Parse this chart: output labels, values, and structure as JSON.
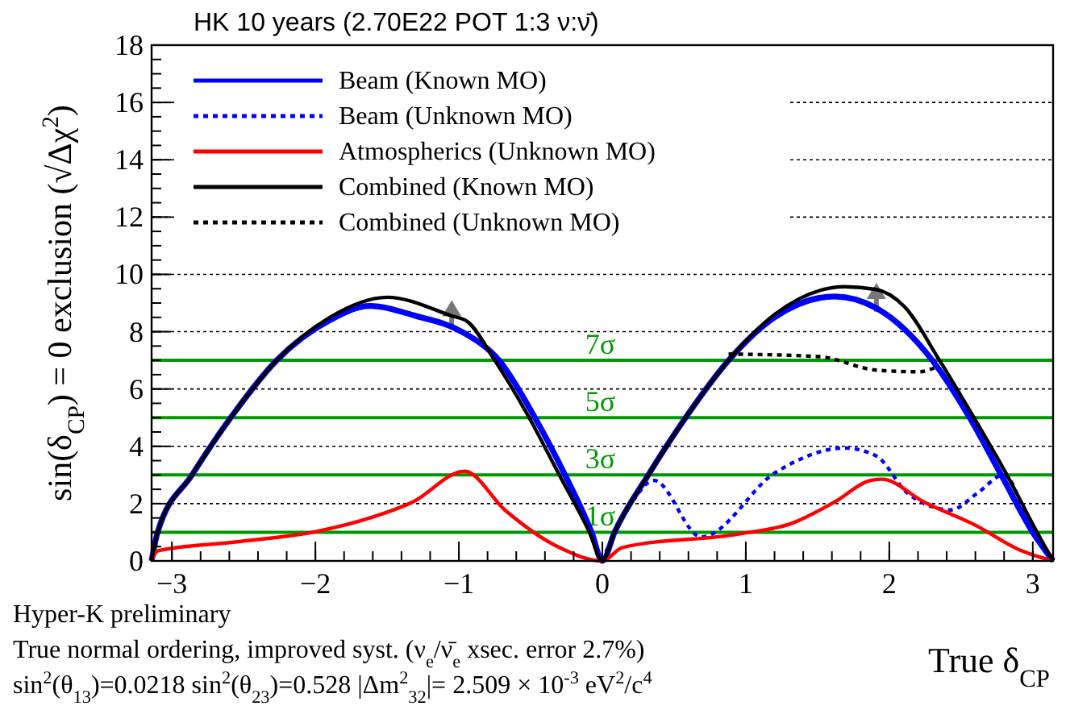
{
  "chart_data": {
    "type": "line",
    "title": "HK 10 years (2.70E22 POT 1:3 ν:ν̄)",
    "xlabel": "True δ$_{CP}$",
    "ylabel": "sin(δ$_{CP}$) = 0 exclusion (√Δχ$^{2}$)",
    "xlim": [
      -3.1416,
      3.1416
    ],
    "xticks": [
      -3,
      -2,
      -1,
      0,
      1,
      2,
      3
    ],
    "ylim": [
      0,
      18
    ],
    "yticks": [
      0,
      2,
      4,
      6,
      8,
      10,
      12,
      14,
      16,
      18
    ],
    "grid": "y",
    "legend": "top left",
    "series": [
      {
        "name": "Beam (Known MO)",
        "color": "#0000ff",
        "line_style": "solid",
        "x": [
          -3.1416,
          -3.1,
          -2.86,
          -2.59,
          -2.27,
          -1.9,
          -1.62,
          -1.3,
          -0.98,
          -0.72,
          -0.47,
          -0.26,
          -0.075,
          0,
          0.085,
          0.32,
          0.58,
          0.88,
          1.2,
          1.62,
          1.91,
          2.3,
          2.56,
          2.78,
          3.0,
          3.1416
        ],
        "values": [
          0,
          1,
          3,
          5,
          7,
          8.4,
          8.9,
          8.55,
          8.0,
          7,
          5,
          3,
          1,
          0,
          1,
          3,
          5,
          7,
          8.5,
          9.23,
          8.82,
          7,
          5,
          3,
          1,
          0
        ]
      },
      {
        "name": "Beam (Unknown MO)",
        "color": "#0000ff",
        "line_style": "dotted",
        "x": [
          0,
          0.085,
          0.2,
          0.36,
          0.69,
          1.21,
          1.69,
          1.91,
          2.13,
          2.43,
          2.61,
          2.8,
          3.0,
          3.1416
        ],
        "values": [
          0,
          1,
          2,
          2.81,
          0.84,
          3.1,
          3.94,
          3.66,
          2.35,
          1.78,
          2.35,
          3.0,
          1,
          0
        ]
      },
      {
        "name": "Atmospherics (Unknown MO)",
        "color": "#ff0000",
        "line_style": "solid",
        "x": [
          -3.1416,
          -3.1,
          -2.56,
          -1.99,
          -1.62,
          -1.32,
          -0.96,
          -0.68,
          -0.3,
          0,
          0.14,
          0.95,
          1.32,
          1.62,
          1.87,
          1.95,
          2.24,
          2.61,
          2.91,
          3.1416
        ],
        "values": [
          0,
          0.35,
          0.66,
          1.03,
          1.5,
          2.06,
          3.13,
          1.78,
          0.47,
          0,
          0.47,
          0.94,
          1.31,
          2.06,
          2.81,
          2.85,
          2.06,
          1.22,
          0.38,
          0
        ]
      },
      {
        "name": "Combined (Known MO)",
        "color": "#000000",
        "line_style": "solid",
        "x": [
          -3.1416,
          -3.1,
          -2.86,
          -2.59,
          -2.27,
          -1.9,
          -1.5,
          -1.05,
          -0.94,
          -0.75,
          -0.51,
          -0.3,
          -0.09,
          0,
          0.085,
          0.32,
          0.58,
          0.88,
          1.2,
          1.69,
          1.91,
          2.1,
          2.35,
          2.59,
          2.82,
          3.03,
          3.1416
        ],
        "values": [
          0,
          1,
          3,
          5,
          7,
          8.5,
          9.2,
          8.55,
          8.35,
          7,
          5,
          3,
          1,
          0,
          1,
          3,
          5,
          7,
          8.6,
          9.57,
          9.47,
          8.9,
          7,
          5,
          3,
          1,
          0
        ]
      },
      {
        "name": "Combined (Unknown MO)",
        "color": "#000000",
        "line_style": "dotted",
        "x": [
          0.88,
          1.51,
          1.91,
          2.21,
          2.32
        ],
        "values": [
          7.22,
          7.13,
          6.66,
          6.6,
          6.75
        ]
      }
    ],
    "ref_lines": [
      {
        "axis": "y",
        "value": 1,
        "label": "1σ",
        "color": "#009900"
      },
      {
        "axis": "y",
        "value": 3,
        "label": "3σ",
        "color": "#009900"
      },
      {
        "axis": "y",
        "value": 5,
        "label": "5σ",
        "color": "#009900"
      },
      {
        "axis": "y",
        "value": 7,
        "label": "7σ",
        "color": "#009900"
      }
    ],
    "annotations": [
      "Hyper-K preliminary",
      "True normal ordering, improved syst. (ν$_{e}$/ν̄$_{e}$ xsec. error 2.7%)",
      "sin$^{2}$(θ$_{13}$)=0.0218 sin$^{2}$(θ$_{23}$)=0.528 |Δm$^{2}$$_{32}$|= 2.509 × 10$^{-3}$ eV$^{2}$/c$^{4}$"
    ]
  }
}
